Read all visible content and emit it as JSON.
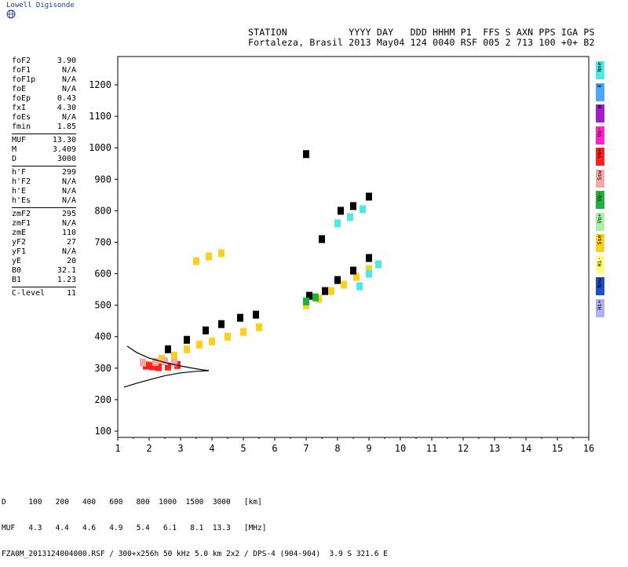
{
  "brand": "Lowell Digisonde",
  "header": {
    "line1": "STATION           YYYY DAY   DDD HHHM P1  FFS S AXN PPS IGA PS",
    "line2": "Fortaleza, Brasil 2013 May04 124 0040 RSF 005 2 713 100 +0+ B2"
  },
  "params": {
    "group1": [
      [
        "foF2",
        "3.90"
      ],
      [
        "foF1",
        "N/A"
      ],
      [
        "foF1p",
        "N/A"
      ],
      [
        "foE",
        "N/A"
      ],
      [
        "foEp",
        "0.43"
      ],
      [
        "fxI",
        "4.30"
      ],
      [
        "foEs",
        "N/A"
      ],
      [
        "fmin",
        "1.85"
      ]
    ],
    "group2": [
      [
        "MUF",
        "13.30"
      ],
      [
        "M",
        "3.409"
      ],
      [
        "D",
        "3000"
      ]
    ],
    "group3": [
      [
        "h'F",
        "299"
      ],
      [
        "h'F2",
        "N/A"
      ],
      [
        "h'E",
        "N/A"
      ],
      [
        "h'Es",
        "N/A"
      ]
    ],
    "group4": [
      [
        "zmF2",
        "295"
      ],
      [
        "zmF1",
        "N/A"
      ],
      [
        "zmE",
        "110"
      ],
      [
        "yF2",
        "27"
      ],
      [
        "yF1",
        "N/A"
      ],
      [
        "yE",
        "20"
      ],
      [
        "B0",
        "32.1"
      ],
      [
        "B1",
        "1.23"
      ]
    ],
    "group5": [
      [
        "C-level",
        "11"
      ]
    ]
  },
  "legend": [
    {
      "label": "Nne",
      "color": "#4de8e8"
    },
    {
      "label": "E",
      "color": "#4aa8ff"
    },
    {
      "label": "W",
      "color": "#a020c8"
    },
    {
      "label": "Vo-",
      "color": "#ff22c8"
    },
    {
      "label": "Vo+",
      "color": "#ff2020"
    },
    {
      "label": "Ssw",
      "color": "#f5a8a8"
    },
    {
      "label": "Vo-",
      "color": "#20b040"
    },
    {
      "label": "Vo+",
      "color": "#a8f0a8"
    },
    {
      "label": "Sse",
      "color": "#ffd020"
    },
    {
      "label": "Hi-",
      "color": "#ffff80"
    },
    {
      "label": "Nnw",
      "color": "#2050c0"
    },
    {
      "label": "Hi+",
      "color": "#b0b0f0"
    }
  ],
  "chart_data": {
    "type": "scatter",
    "title": "",
    "xlabel": "",
    "ylabel": "",
    "xlim": [
      1,
      16
    ],
    "ylim": [
      80,
      1290
    ],
    "xticks": [
      1,
      2,
      3,
      4,
      5,
      6,
      7,
      8,
      9,
      10,
      11,
      12,
      13,
      14,
      15,
      16
    ],
    "yticks": [
      100,
      200,
      300,
      400,
      500,
      600,
      700,
      800,
      900,
      1000,
      1100,
      1200
    ],
    "grid": false,
    "series": [
      {
        "color": "#ffd020",
        "points": [
          [
            2.0,
            310
          ],
          [
            2.4,
            330
          ],
          [
            2.8,
            340
          ],
          [
            3.2,
            360
          ],
          [
            3.6,
            375
          ],
          [
            4.0,
            385
          ],
          [
            4.5,
            400
          ],
          [
            5.0,
            415
          ],
          [
            5.5,
            430
          ],
          [
            3.5,
            640
          ],
          [
            3.9,
            655
          ],
          [
            4.3,
            665
          ],
          [
            7.0,
            500
          ],
          [
            7.4,
            520
          ],
          [
            7.8,
            545
          ],
          [
            8.2,
            565
          ],
          [
            8.6,
            590
          ],
          [
            9.0,
            615
          ]
        ]
      },
      {
        "color": "#000000",
        "points": [
          [
            2.6,
            360
          ],
          [
            3.2,
            390
          ],
          [
            3.8,
            420
          ],
          [
            4.3,
            440
          ],
          [
            4.9,
            460
          ],
          [
            5.4,
            470
          ],
          [
            7.1,
            530
          ],
          [
            7.6,
            545
          ],
          [
            8.0,
            580
          ],
          [
            8.5,
            610
          ],
          [
            9.0,
            650
          ],
          [
            8.1,
            800
          ],
          [
            8.5,
            815
          ],
          [
            9.0,
            845
          ],
          [
            7.0,
            980
          ],
          [
            7.5,
            710
          ]
        ]
      },
      {
        "color": "#4de8e8",
        "points": [
          [
            8.0,
            760
          ],
          [
            8.4,
            780
          ],
          [
            8.8,
            805
          ],
          [
            8.7,
            560
          ],
          [
            9.0,
            600
          ],
          [
            9.3,
            630
          ]
        ]
      },
      {
        "color": "#ff2020",
        "points": [
          [
            1.9,
            308
          ],
          [
            2.1,
            306
          ],
          [
            2.3,
            303
          ],
          [
            2.6,
            305
          ],
          [
            2.9,
            310
          ]
        ]
      },
      {
        "color": "#f5a8a8",
        "points": [
          [
            1.8,
            318
          ],
          [
            2.2,
            320
          ],
          [
            2.5,
            322
          ],
          [
            2.8,
            318
          ]
        ]
      },
      {
        "color": "#20b040",
        "points": [
          [
            7.0,
            512
          ],
          [
            7.3,
            525
          ]
        ]
      }
    ],
    "model_trace": {
      "color": "#000000",
      "lower": [
        [
          1.2,
          240
        ],
        [
          1.6,
          252
        ],
        [
          2.0,
          263
        ],
        [
          2.5,
          276
        ],
        [
          3.0,
          285
        ],
        [
          3.5,
          290
        ],
        [
          3.9,
          292
        ]
      ],
      "upper": [
        [
          1.3,
          370
        ],
        [
          1.6,
          350
        ],
        [
          2.0,
          332
        ],
        [
          2.5,
          318
        ],
        [
          3.0,
          307
        ],
        [
          3.5,
          298
        ],
        [
          3.9,
          292
        ]
      ]
    }
  },
  "footer": {
    "line1": "D     100   200   400   600   800  1000  1500  3000   [km]",
    "line2": "MUF   4.3   4.4   4.6   4.9   5.4   6.1   8.1  13.3   [MHz]",
    "line3": "FZA0M_2013124004000.RSF / 300+x256h 50 kHz 5.0 km 2x2 / DPS-4 (904-904)  3.9 S 321.6 E"
  }
}
